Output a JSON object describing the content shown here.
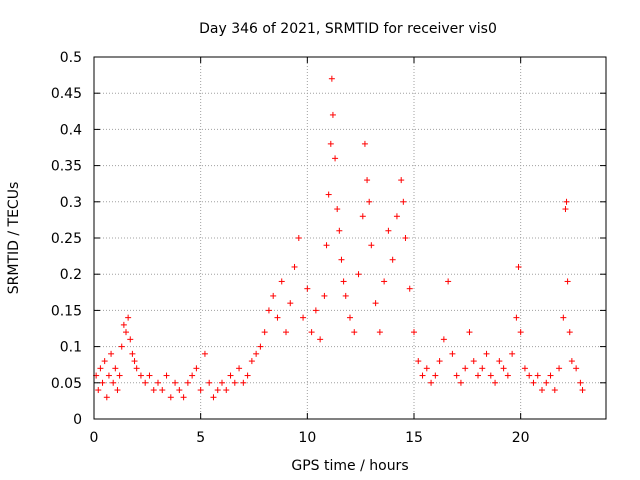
{
  "chart_data": {
    "type": "scatter",
    "title": "Day 346 of 2021, SRMTID for receiver vis0",
    "xlabel": "GPS time / hours",
    "ylabel": "SRMTID / TECUs",
    "xlim": [
      0,
      24
    ],
    "ylim": [
      0,
      0.5
    ],
    "x_ticks": [
      0,
      5,
      10,
      15,
      20
    ],
    "x_tick_labels": [
      "0",
      "5",
      "10",
      "15",
      "20"
    ],
    "y_ticks": [
      0,
      0.05,
      0.1,
      0.15,
      0.2,
      0.25,
      0.3,
      0.35,
      0.4,
      0.45,
      0.5
    ],
    "y_tick_labels": [
      "0",
      "0.05",
      "0.1",
      "0.15",
      "0.2",
      "0.25",
      "0.3",
      "0.35",
      "0.4",
      "0.45",
      "0.5"
    ],
    "grid": true,
    "marker": "+",
    "series": [
      {
        "name": "SRMTID",
        "color": "#ff0000",
        "points": [
          [
            0.1,
            0.06
          ],
          [
            0.2,
            0.04
          ],
          [
            0.3,
            0.07
          ],
          [
            0.4,
            0.05
          ],
          [
            0.5,
            0.08
          ],
          [
            0.6,
            0.03
          ],
          [
            0.7,
            0.06
          ],
          [
            0.8,
            0.09
          ],
          [
            0.9,
            0.05
          ],
          [
            1.0,
            0.07
          ],
          [
            1.1,
            0.04
          ],
          [
            1.2,
            0.06
          ],
          [
            1.3,
            0.1
          ],
          [
            1.4,
            0.13
          ],
          [
            1.5,
            0.12
          ],
          [
            1.6,
            0.14
          ],
          [
            1.7,
            0.11
          ],
          [
            1.8,
            0.09
          ],
          [
            1.9,
            0.08
          ],
          [
            2.0,
            0.07
          ],
          [
            2.2,
            0.06
          ],
          [
            2.4,
            0.05
          ],
          [
            2.6,
            0.06
          ],
          [
            2.8,
            0.04
          ],
          [
            3.0,
            0.05
          ],
          [
            3.2,
            0.04
          ],
          [
            3.4,
            0.06
          ],
          [
            3.6,
            0.03
          ],
          [
            3.8,
            0.05
          ],
          [
            4.0,
            0.04
          ],
          [
            4.2,
            0.03
          ],
          [
            4.4,
            0.05
          ],
          [
            4.6,
            0.06
          ],
          [
            4.8,
            0.07
          ],
          [
            5.0,
            0.04
          ],
          [
            5.2,
            0.09
          ],
          [
            5.4,
            0.05
          ],
          [
            5.6,
            0.03
          ],
          [
            5.8,
            0.04
          ],
          [
            6.0,
            0.05
          ],
          [
            6.2,
            0.04
          ],
          [
            6.4,
            0.06
          ],
          [
            6.6,
            0.05
          ],
          [
            6.8,
            0.07
          ],
          [
            7.0,
            0.05
          ],
          [
            7.2,
            0.06
          ],
          [
            7.4,
            0.08
          ],
          [
            7.6,
            0.09
          ],
          [
            7.8,
            0.1
          ],
          [
            8.0,
            0.12
          ],
          [
            8.2,
            0.15
          ],
          [
            8.4,
            0.17
          ],
          [
            8.6,
            0.14
          ],
          [
            8.8,
            0.19
          ],
          [
            9.0,
            0.12
          ],
          [
            9.2,
            0.16
          ],
          [
            9.4,
            0.21
          ],
          [
            9.6,
            0.25
          ],
          [
            9.8,
            0.14
          ],
          [
            10.0,
            0.18
          ],
          [
            10.2,
            0.12
          ],
          [
            10.4,
            0.15
          ],
          [
            10.6,
            0.11
          ],
          [
            10.8,
            0.17
          ],
          [
            10.9,
            0.24
          ],
          [
            11.0,
            0.31
          ],
          [
            11.1,
            0.38
          ],
          [
            11.15,
            0.47
          ],
          [
            11.2,
            0.42
          ],
          [
            11.3,
            0.36
          ],
          [
            11.4,
            0.29
          ],
          [
            11.5,
            0.26
          ],
          [
            11.6,
            0.22
          ],
          [
            11.7,
            0.19
          ],
          [
            11.8,
            0.17
          ],
          [
            12.0,
            0.14
          ],
          [
            12.2,
            0.12
          ],
          [
            12.4,
            0.2
          ],
          [
            12.6,
            0.28
          ],
          [
            12.7,
            0.38
          ],
          [
            12.8,
            0.33
          ],
          [
            12.9,
            0.3
          ],
          [
            13.0,
            0.24
          ],
          [
            13.2,
            0.16
          ],
          [
            13.4,
            0.12
          ],
          [
            13.6,
            0.19
          ],
          [
            13.8,
            0.26
          ],
          [
            14.0,
            0.22
          ],
          [
            14.2,
            0.28
          ],
          [
            14.4,
            0.33
          ],
          [
            14.5,
            0.3
          ],
          [
            14.6,
            0.25
          ],
          [
            14.8,
            0.18
          ],
          [
            15.0,
            0.12
          ],
          [
            15.2,
            0.08
          ],
          [
            15.4,
            0.06
          ],
          [
            15.6,
            0.07
          ],
          [
            15.8,
            0.05
          ],
          [
            16.0,
            0.06
          ],
          [
            16.2,
            0.08
          ],
          [
            16.4,
            0.11
          ],
          [
            16.6,
            0.19
          ],
          [
            16.8,
            0.09
          ],
          [
            17.0,
            0.06
          ],
          [
            17.2,
            0.05
          ],
          [
            17.4,
            0.07
          ],
          [
            17.6,
            0.12
          ],
          [
            17.8,
            0.08
          ],
          [
            18.0,
            0.06
          ],
          [
            18.2,
            0.07
          ],
          [
            18.4,
            0.09
          ],
          [
            18.6,
            0.06
          ],
          [
            18.8,
            0.05
          ],
          [
            19.0,
            0.08
          ],
          [
            19.2,
            0.07
          ],
          [
            19.4,
            0.06
          ],
          [
            19.6,
            0.09
          ],
          [
            19.8,
            0.14
          ],
          [
            19.9,
            0.21
          ],
          [
            20.0,
            0.12
          ],
          [
            20.2,
            0.07
          ],
          [
            20.4,
            0.06
          ],
          [
            20.6,
            0.05
          ],
          [
            20.8,
            0.06
          ],
          [
            21.0,
            0.04
          ],
          [
            21.2,
            0.05
          ],
          [
            21.4,
            0.06
          ],
          [
            21.6,
            0.04
          ],
          [
            21.8,
            0.07
          ],
          [
            22.0,
            0.14
          ],
          [
            22.1,
            0.29
          ],
          [
            22.15,
            0.3
          ],
          [
            22.2,
            0.19
          ],
          [
            22.3,
            0.12
          ],
          [
            22.4,
            0.08
          ],
          [
            22.6,
            0.07
          ],
          [
            22.8,
            0.05
          ],
          [
            22.9,
            0.04
          ]
        ]
      }
    ]
  }
}
